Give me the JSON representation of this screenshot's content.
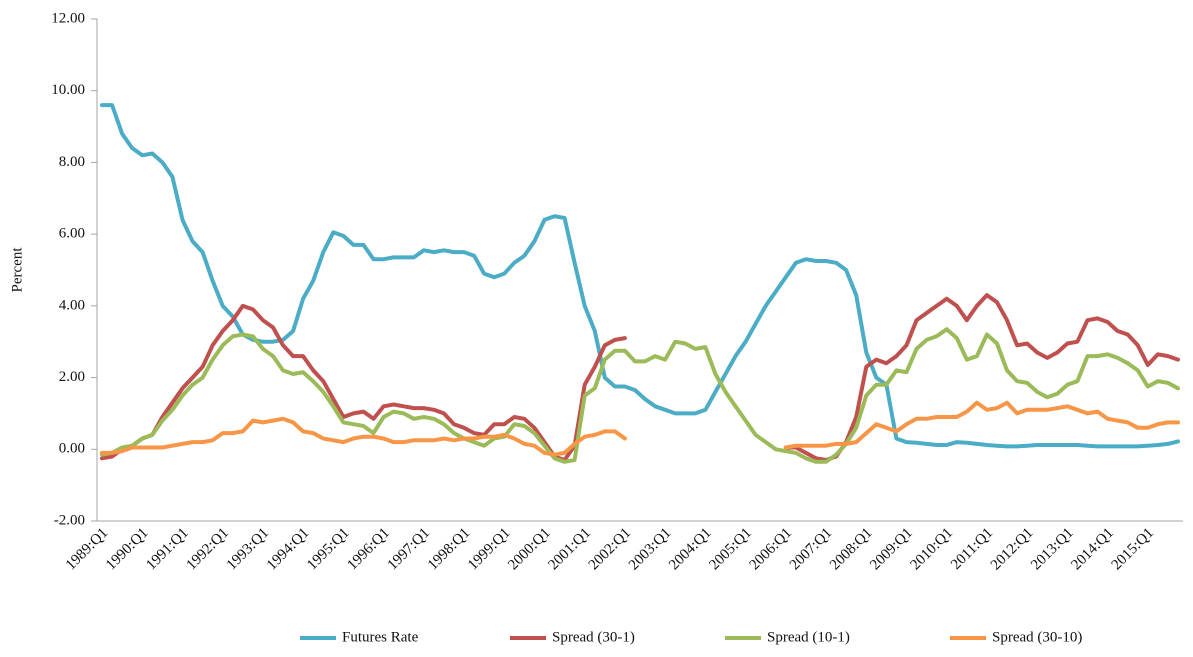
{
  "chart_data": {
    "type": "line",
    "y_label": "Percent",
    "categories": [
      "1989:Q1",
      null,
      null,
      null,
      "1990:Q1",
      null,
      null,
      null,
      "1991:Q1",
      null,
      null,
      null,
      "1992:Q1",
      null,
      null,
      null,
      "1993:Q1",
      null,
      null,
      null,
      "1994:Q1",
      null,
      null,
      null,
      "1995:Q1",
      null,
      null,
      null,
      "1996:Q1",
      null,
      null,
      null,
      "1997:Q1",
      null,
      null,
      null,
      "1998:Q1",
      null,
      null,
      null,
      "1999:Q1",
      null,
      null,
      null,
      "2000:Q1",
      null,
      null,
      null,
      "2001:Q1",
      null,
      null,
      null,
      "2002:Q1",
      null,
      null,
      null,
      "2003:Q1",
      null,
      null,
      null,
      "2004:Q1",
      null,
      null,
      null,
      "2005:Q1",
      null,
      null,
      null,
      "2006:Q1",
      null,
      null,
      null,
      "2007:Q1",
      null,
      null,
      null,
      "2008:Q1",
      null,
      null,
      null,
      "2009:Q1",
      null,
      null,
      null,
      "2010:Q1",
      null,
      null,
      null,
      "2011:Q1",
      null,
      null,
      null,
      "2012:Q1",
      null,
      null,
      null,
      "2013:Q1",
      null,
      null,
      null,
      "2014:Q1",
      null,
      null,
      null,
      "2015:Q1",
      null,
      null,
      null
    ],
    "series": [
      {
        "name": "Futures Rate",
        "color": "#4bacc6",
        "values": [
          9.6,
          9.6,
          8.8,
          8.4,
          8.2,
          8.25,
          8.0,
          7.6,
          6.4,
          5.8,
          5.5,
          4.7,
          4.0,
          3.7,
          3.2,
          3.05,
          3.0,
          3.0,
          3.05,
          3.3,
          4.2,
          4.7,
          5.5,
          6.05,
          5.95,
          5.7,
          5.7,
          5.3,
          5.3,
          5.35,
          5.35,
          5.35,
          5.55,
          5.5,
          5.55,
          5.5,
          5.5,
          5.4,
          4.9,
          4.8,
          4.9,
          5.2,
          5.4,
          5.8,
          6.4,
          6.5,
          6.45,
          5.2,
          4.0,
          3.3,
          2.0,
          1.75,
          1.75,
          1.65,
          1.4,
          1.2,
          1.1,
          1.0,
          1.0,
          1.0,
          1.1,
          1.6,
          2.1,
          2.6,
          3.0,
          3.5,
          4.0,
          4.4,
          4.8,
          5.2,
          5.3,
          5.25,
          5.25,
          5.2,
          5.0,
          4.3,
          2.7,
          2.0,
          1.8,
          0.3,
          0.2,
          0.18,
          0.15,
          0.12,
          0.12,
          0.2,
          0.18,
          0.15,
          0.12,
          0.1,
          0.08,
          0.08,
          0.1,
          0.12,
          0.12,
          0.12,
          0.12,
          0.12,
          0.1,
          0.08,
          0.08,
          0.08,
          0.08,
          0.08,
          0.1,
          0.12,
          0.15,
          0.22
        ]
      },
      {
        "name": "Spread (30-1)",
        "color": "#c0504d",
        "values": [
          -0.25,
          -0.2,
          0.0,
          0.1,
          0.3,
          0.4,
          0.9,
          1.3,
          1.7,
          2.0,
          2.3,
          2.9,
          3.3,
          3.6,
          4.0,
          3.9,
          3.6,
          3.4,
          2.9,
          2.6,
          2.6,
          2.2,
          1.9,
          1.4,
          0.9,
          1.0,
          1.05,
          0.85,
          1.2,
          1.25,
          1.2,
          1.15,
          1.15,
          1.1,
          1.0,
          0.7,
          0.6,
          0.45,
          0.4,
          0.7,
          0.7,
          0.9,
          0.85,
          0.6,
          0.2,
          -0.2,
          -0.3,
          0.1,
          1.8,
          2.3,
          2.9,
          3.05,
          3.1,
          null,
          null,
          null,
          null,
          null,
          null,
          null,
          null,
          null,
          null,
          null,
          null,
          null,
          null,
          null,
          0.05,
          0.05,
          -0.1,
          -0.25,
          -0.3,
          -0.2,
          0.2,
          0.9,
          2.3,
          2.5,
          2.4,
          2.6,
          2.9,
          3.6,
          3.8,
          4.0,
          4.2,
          4.0,
          3.6,
          4.0,
          4.3,
          4.1,
          3.6,
          2.9,
          2.95,
          2.7,
          2.55,
          2.7,
          2.95,
          3.0,
          3.6,
          3.65,
          3.55,
          3.3,
          3.2,
          2.9,
          2.35,
          2.65,
          2.6,
          2.5
        ]
      },
      {
        "name": "Spread (10-1)",
        "color": "#9bbb59",
        "values": [
          -0.15,
          -0.1,
          0.05,
          0.1,
          0.3,
          0.4,
          0.8,
          1.1,
          1.5,
          1.8,
          2.0,
          2.5,
          2.9,
          3.15,
          3.2,
          3.15,
          2.8,
          2.6,
          2.2,
          2.1,
          2.15,
          1.9,
          1.6,
          1.2,
          0.75,
          0.7,
          0.65,
          0.45,
          0.9,
          1.05,
          1.0,
          0.85,
          0.9,
          0.85,
          0.7,
          0.45,
          0.3,
          0.2,
          0.1,
          0.3,
          0.35,
          0.7,
          0.65,
          0.45,
          0.1,
          -0.25,
          -0.35,
          -0.3,
          1.5,
          1.7,
          2.5,
          2.75,
          2.75,
          2.45,
          2.45,
          2.6,
          2.5,
          3.0,
          2.95,
          2.8,
          2.85,
          2.1,
          1.6,
          1.2,
          0.8,
          0.4,
          0.2,
          0.0,
          -0.05,
          -0.1,
          -0.25,
          -0.35,
          -0.35,
          -0.15,
          0.15,
          0.6,
          1.5,
          1.8,
          1.8,
          2.2,
          2.15,
          2.8,
          3.05,
          3.15,
          3.35,
          3.1,
          2.5,
          2.6,
          3.2,
          2.95,
          2.2,
          1.9,
          1.85,
          1.6,
          1.45,
          1.55,
          1.8,
          1.9,
          2.6,
          2.6,
          2.65,
          2.55,
          2.4,
          2.2,
          1.75,
          1.9,
          1.85,
          1.7
        ]
      },
      {
        "name": "Spread (30-10)",
        "color": "#f79646",
        "values": [
          -0.1,
          -0.1,
          -0.05,
          0.05,
          0.05,
          0.05,
          0.05,
          0.1,
          0.15,
          0.2,
          0.2,
          0.25,
          0.45,
          0.45,
          0.5,
          0.8,
          0.75,
          0.8,
          0.85,
          0.75,
          0.5,
          0.45,
          0.3,
          0.25,
          0.2,
          0.3,
          0.35,
          0.35,
          0.3,
          0.2,
          0.2,
          0.25,
          0.25,
          0.25,
          0.3,
          0.25,
          0.3,
          0.3,
          0.35,
          0.35,
          0.4,
          0.3,
          0.15,
          0.1,
          -0.1,
          -0.15,
          -0.1,
          0.15,
          0.35,
          0.4,
          0.5,
          0.5,
          0.3,
          null,
          null,
          null,
          null,
          null,
          null,
          null,
          null,
          null,
          null,
          null,
          null,
          null,
          null,
          null,
          0.05,
          0.1,
          0.1,
          0.1,
          0.1,
          0.15,
          0.15,
          0.2,
          0.45,
          0.7,
          0.6,
          0.5,
          0.7,
          0.85,
          0.85,
          0.9,
          0.9,
          0.9,
          1.05,
          1.3,
          1.1,
          1.15,
          1.3,
          1.0,
          1.1,
          1.1,
          1.1,
          1.15,
          1.2,
          1.1,
          1.0,
          1.05,
          0.85,
          0.8,
          0.75,
          0.6,
          0.6,
          0.7,
          0.75,
          0.75
        ]
      }
    ],
    "ylim": [
      -2,
      12
    ],
    "yticks": [
      {
        "value": -2,
        "label": "-2.00"
      },
      {
        "value": 0,
        "label": "0.00"
      },
      {
        "value": 2,
        "label": "2.00"
      },
      {
        "value": 4,
        "label": "4.00"
      },
      {
        "value": 6,
        "label": "6.00"
      },
      {
        "value": 8,
        "label": "8.00"
      },
      {
        "value": 10,
        "label": "10.00"
      },
      {
        "value": 12,
        "label": "12.00"
      }
    ],
    "grid": false,
    "legend": "bottom"
  }
}
